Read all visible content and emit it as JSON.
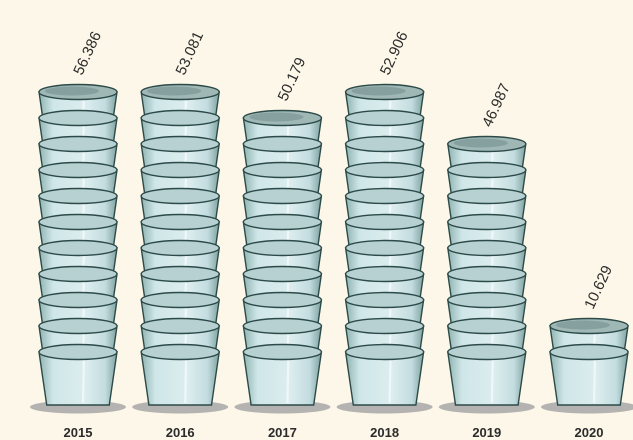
{
  "chart_data": {
    "type": "bar",
    "title": "",
    "xlabel": "",
    "ylabel": "",
    "categories": [
      "2015",
      "2016",
      "2017",
      "2018",
      "2019",
      "2020"
    ],
    "values": [
      56.386,
      53.081,
      50.179,
      52.906,
      46.987,
      10.629
    ],
    "value_labels": [
      "56.386",
      "53.081",
      "50.179",
      "52.906",
      "46.987",
      "10.629"
    ],
    "pictogram": "stacked-cups",
    "grid": false,
    "legend": "none"
  },
  "colors": {
    "background": "#fcf7e8",
    "cup_fill": "#cbe3e6",
    "cup_stroke": "#2c4a48",
    "cup_rim": "#9fb8b5",
    "shadow": "#a7a7a7"
  }
}
